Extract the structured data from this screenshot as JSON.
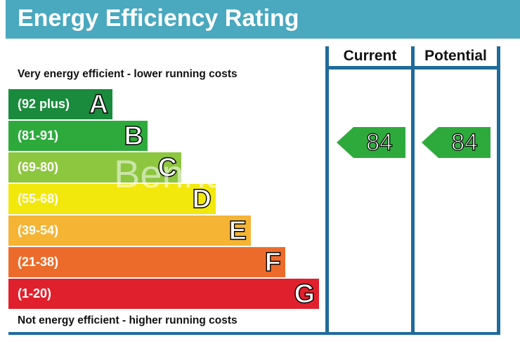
{
  "title": "Energy Efficiency Rating",
  "columns": {
    "current": "Current",
    "potential": "Potential"
  },
  "captions": {
    "top": "Very energy efficient - lower running costs",
    "bottom": "Not energy efficient - higher running costs"
  },
  "bands": [
    {
      "range": "(92 plus)",
      "letter": "A",
      "color": "#1a8a3c"
    },
    {
      "range": "(81-91)",
      "letter": "B",
      "color": "#2eaa3d"
    },
    {
      "range": "(69-80)",
      "letter": "C",
      "color": "#8dc63f"
    },
    {
      "range": "(55-68)",
      "letter": "D",
      "color": "#f2e80b"
    },
    {
      "range": "(39-54)",
      "letter": "E",
      "color": "#f5b434"
    },
    {
      "range": "(21-38)",
      "letter": "F",
      "color": "#ec6b2b"
    },
    {
      "range": "(1-20)",
      "letter": "G",
      "color": "#e0202c"
    }
  ],
  "ratings": {
    "current": {
      "value": "84",
      "color": "#2eaa3d"
    },
    "potential": {
      "value": "84",
      "color": "#2eaa3d"
    }
  },
  "watermark": "Benham & Reeves"
}
